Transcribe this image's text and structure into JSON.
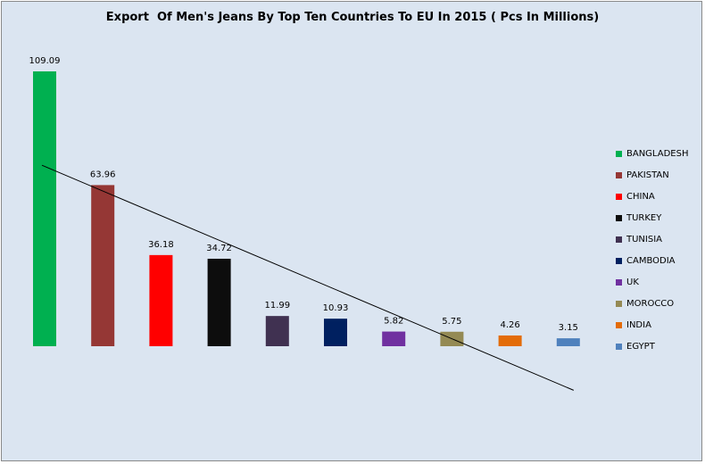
{
  "chart_data": {
    "type": "bar",
    "title": "Export  Of Men's Jeans By Top Ten Countries To EU In 2015 ( Pcs In Millions)",
    "categories": [
      "BANGLADESH",
      "PAKISTAN",
      "CHINA",
      "TURKEY",
      "TUNISIA",
      "CAMBODIA",
      "UK",
      "MOROCCO",
      "INDIA",
      "EGYPT"
    ],
    "values": [
      109.09,
      63.96,
      36.18,
      34.72,
      11.99,
      10.93,
      5.82,
      5.75,
      4.26,
      3.15
    ],
    "data_labels": [
      "109.09",
      "63.96",
      "36.18",
      "34.72",
      "11.99",
      "10.93",
      "5.82",
      "5.75",
      "4.26",
      "3.15"
    ],
    "colors": [
      "#00b050",
      "#953735",
      "#ff0000",
      "#0d0d0d",
      "#403151",
      "#002060",
      "#7030a0",
      "#948a54",
      "#e36c09",
      "#4f81bd"
    ],
    "background_color": "#dbe5f1",
    "trendline": "linear",
    "trendline_color": "#000000",
    "legend_position": "right",
    "grid": false,
    "axes_visible": false
  }
}
